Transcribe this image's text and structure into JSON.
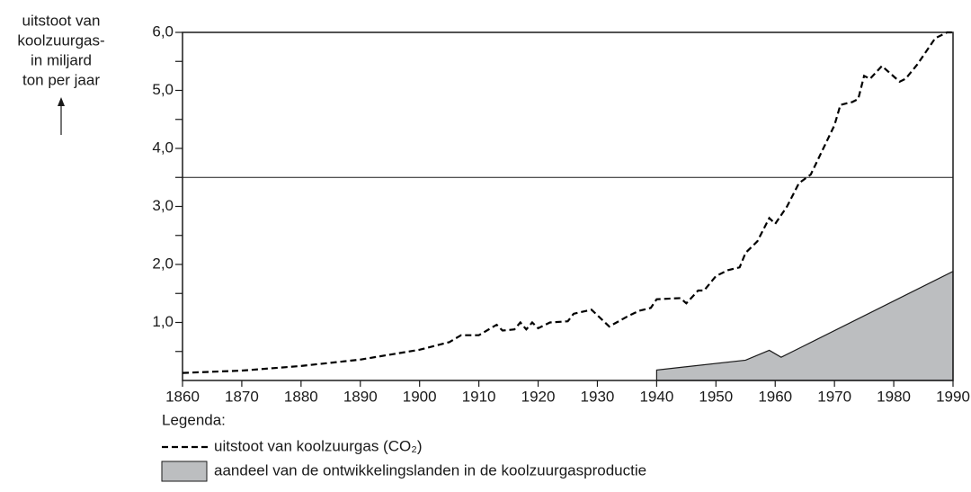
{
  "chart_data": {
    "type": "line",
    "ylabel": [
      "uitstoot van",
      "koolzuurgas-",
      "in miljard",
      "ton per jaar"
    ],
    "xlim": [
      1860,
      1990
    ],
    "xticks": [
      1860,
      1870,
      1880,
      1890,
      1900,
      1910,
      1920,
      1930,
      1940,
      1950,
      1960,
      1970,
      1980,
      1990
    ],
    "ylim": [
      0,
      6
    ],
    "yticks": [
      {
        "value": 1,
        "label": "1,0"
      },
      {
        "value": 2,
        "label": "2,0"
      },
      {
        "value": 3,
        "label": "3,0"
      },
      {
        "value": 4,
        "label": "4,0"
      },
      {
        "value": 5,
        "label": "5,0"
      },
      {
        "value": 6,
        "label": "6,0"
      }
    ],
    "yminorticks": [
      0.5,
      1.5,
      2.5,
      3.5,
      4.5,
      5.5
    ],
    "reference_line": 3.5,
    "legend_title": "Legenda:",
    "series": [
      {
        "name": "uitstoot van koolzuurgas (CO₂)",
        "style": "dashed",
        "color": "#000000",
        "x": [
          1860,
          1870,
          1880,
          1890,
          1900,
          1905,
          1907,
          1910,
          1913,
          1914,
          1916,
          1917,
          1918,
          1919,
          1920,
          1922,
          1925,
          1926,
          1929,
          1932,
          1935,
          1937,
          1939,
          1940,
          1944,
          1945,
          1947,
          1948,
          1950,
          1952,
          1954,
          1955,
          1957,
          1959,
          1960,
          1962,
          1964,
          1966,
          1970,
          1971,
          1973,
          1974,
          1975,
          1976,
          1978,
          1981,
          1982,
          1984,
          1987,
          1989,
          1990
        ],
        "values": [
          0.13,
          0.17,
          0.25,
          0.36,
          0.53,
          0.66,
          0.78,
          0.78,
          0.96,
          0.86,
          0.88,
          1.0,
          0.88,
          1.0,
          0.9,
          1.0,
          1.02,
          1.15,
          1.22,
          0.93,
          1.1,
          1.2,
          1.25,
          1.4,
          1.42,
          1.33,
          1.55,
          1.55,
          1.8,
          1.9,
          1.95,
          2.2,
          2.4,
          2.8,
          2.7,
          3.0,
          3.4,
          3.55,
          4.4,
          4.75,
          4.8,
          4.85,
          5.25,
          5.2,
          5.42,
          5.15,
          5.2,
          5.45,
          5.9,
          6.0,
          6.0
        ]
      },
      {
        "name": "aandeel van de ontwikkelingslanden in de koolzuurgasproductie",
        "style": "area",
        "color": "#bcbec0",
        "x": [
          1940,
          1955,
          1959,
          1961,
          1990
        ],
        "values": [
          0.18,
          0.35,
          0.52,
          0.4,
          1.88
        ]
      }
    ]
  }
}
